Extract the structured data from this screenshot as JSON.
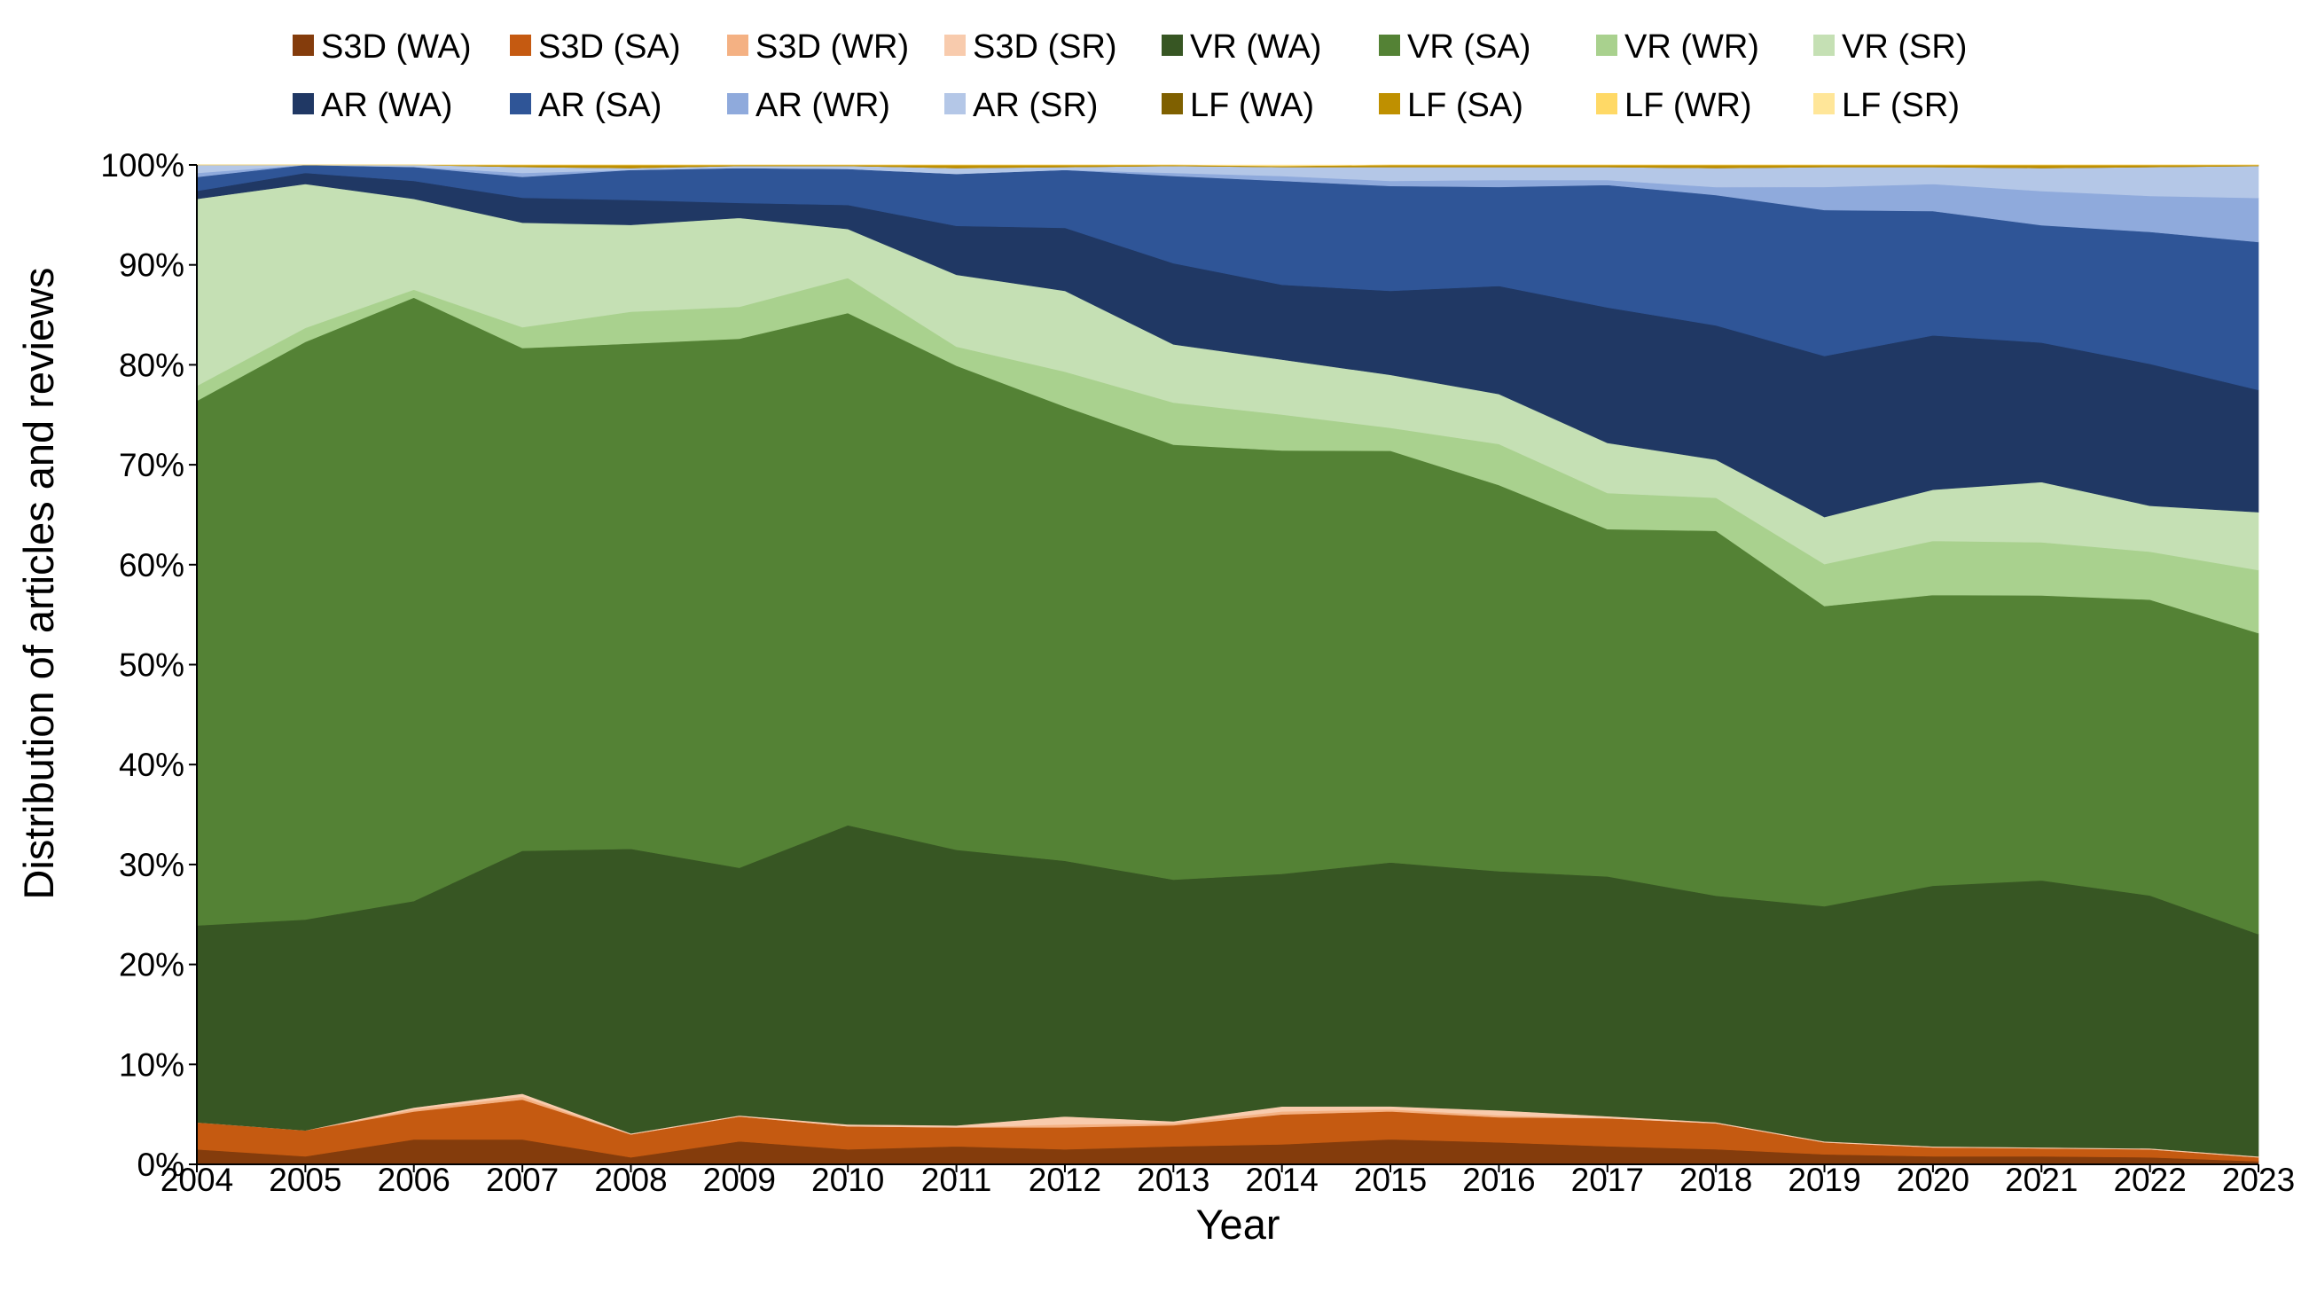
{
  "chart_data": {
    "type": "area",
    "stacked": true,
    "normalized": "percent",
    "title": "",
    "xlabel": "Year",
    "ylabel": "Distribution of articles and reviews",
    "ylim": [
      0,
      100
    ],
    "y_ticks": [
      "0%",
      "10%",
      "20%",
      "30%",
      "40%",
      "50%",
      "60%",
      "70%",
      "80%",
      "90%",
      "100%"
    ],
    "y_tick_values": [
      0,
      10,
      20,
      30,
      40,
      50,
      60,
      70,
      80,
      90,
      100
    ],
    "legend_position": "top",
    "categories": [
      "2004",
      "2005",
      "2006",
      "2007",
      "2008",
      "2009",
      "2010",
      "2011",
      "2012",
      "2013",
      "2014",
      "2015",
      "2016",
      "2017",
      "2018",
      "2019",
      "2020",
      "2021",
      "2022",
      "2023"
    ],
    "series": [
      {
        "name": "S3D (WA)",
        "color": "#843c0c",
        "values": [
          1.5,
          0.8,
          2.5,
          2.5,
          0.7,
          2.3,
          1.5,
          1.8,
          1.5,
          1.8,
          2.0,
          2.5,
          2.2,
          1.8,
          1.5,
          1.0,
          0.8,
          0.8,
          0.7,
          0.3
        ]
      },
      {
        "name": "S3D (SA)",
        "color": "#c55a11",
        "values": [
          2.7,
          2.6,
          2.8,
          4.0,
          2.3,
          2.5,
          2.3,
          1.9,
          2.2,
          2.1,
          3.0,
          2.8,
          2.5,
          2.8,
          2.6,
          1.2,
          0.9,
          0.8,
          0.8,
          0.4
        ]
      },
      {
        "name": "S3D (WR)",
        "color": "#f4b183",
        "values": [
          0,
          0,
          0.2,
          0.3,
          0,
          0,
          0,
          0,
          0.3,
          0.2,
          0.3,
          0.2,
          0.2,
          0,
          0,
          0,
          0,
          0,
          0,
          0
        ]
      },
      {
        "name": "S3D (SR)",
        "color": "#f8cbad",
        "values": [
          0,
          0,
          0.2,
          0.3,
          0.1,
          0.1,
          0.2,
          0.2,
          0.8,
          0.2,
          0.5,
          0.3,
          0.5,
          0.2,
          0.1,
          0.1,
          0.1,
          0.1,
          0.1,
          0.1
        ]
      },
      {
        "name": "VR (WA)",
        "color": "#375623",
        "values": [
          19.7,
          21.1,
          20.7,
          24.4,
          28.5,
          24.8,
          29.9,
          27.6,
          25.6,
          24.1,
          23.3,
          24.4,
          23.9,
          23.9,
          22.6,
          23.5,
          26.0,
          26.6,
          25.3,
          22.2
        ]
      },
      {
        "name": "VR (SA)",
        "color": "#548235",
        "values": [
          52.5,
          57.8,
          60.5,
          50.5,
          50.6,
          53.0,
          51.2,
          48.5,
          45.5,
          43.4,
          42.4,
          41.2,
          38.6,
          34.6,
          36.4,
          30.0,
          29.0,
          28.4,
          29.6,
          30.1
        ]
      },
      {
        "name": "VR (WR)",
        "color": "#a9d18e",
        "values": [
          1.5,
          1.4,
          0.8,
          2.1,
          3.2,
          3.2,
          3.5,
          1.9,
          3.5,
          4.2,
          3.6,
          2.3,
          4.1,
          3.6,
          3.3,
          4.2,
          5.4,
          5.3,
          4.8,
          6.3
        ]
      },
      {
        "name": "VR (SR)",
        "color": "#c5e0b4",
        "values": [
          18.7,
          14.4,
          9.1,
          10.5,
          8.7,
          8.9,
          4.9,
          7.2,
          8.1,
          5.8,
          5.5,
          5.3,
          5.0,
          5.0,
          3.8,
          4.7,
          5.1,
          6.0,
          4.6,
          5.8
        ]
      },
      {
        "name": "AR (WA)",
        "color": "#203864",
        "values": [
          0.8,
          1.1,
          1.8,
          2.5,
          2.5,
          1.5,
          2.4,
          4.9,
          6.3,
          8.1,
          7.5,
          8.4,
          10.8,
          13.5,
          13.4,
          16.1,
          15.4,
          13.9,
          14.2,
          12.2
        ]
      },
      {
        "name": "AR (SA)",
        "color": "#2f5597",
        "values": [
          1.4,
          0.8,
          1.4,
          2.1,
          3.0,
          3.5,
          3.6,
          5.2,
          5.8,
          8.7,
          10.4,
          10.5,
          9.9,
          12.2,
          13.0,
          14.6,
          12.4,
          11.7,
          13.2,
          14.8
        ]
      },
      {
        "name": "AR (WR)",
        "color": "#8faadc",
        "values": [
          0.4,
          0,
          0,
          0.4,
          0,
          0,
          0,
          0,
          0,
          0.3,
          0.5,
          0.5,
          0.7,
          0.5,
          0.8,
          2.3,
          2.7,
          3.4,
          3.6,
          4.4
        ]
      },
      {
        "name": "AR (SR)",
        "color": "#b4c7e7",
        "values": [
          0.8,
          0,
          0.2,
          0.6,
          0.2,
          0.2,
          0.3,
          0.6,
          0.3,
          0.7,
          0.9,
          1.4,
          1.3,
          1.3,
          1.9,
          2.0,
          1.7,
          2.3,
          2.9,
          3.2
        ]
      },
      {
        "name": "LF (WA)",
        "color": "#7f6000",
        "values": [
          0,
          0,
          0,
          0,
          0,
          0,
          0,
          0,
          0,
          0,
          0,
          0,
          0,
          0,
          0,
          0,
          0,
          0,
          0,
          0
        ]
      },
      {
        "name": "LF (SA)",
        "color": "#bf9000",
        "values": [
          0,
          0,
          0,
          0.2,
          0.3,
          0.1,
          0.1,
          0.3,
          0.2,
          0.1,
          0.1,
          0.2,
          0.2,
          0.2,
          0.3,
          0.2,
          0.2,
          0.3,
          0.2,
          0.1
        ]
      },
      {
        "name": "LF (WR)",
        "color": "#ffd966",
        "values": [
          0,
          0,
          0,
          0,
          0,
          0,
          0,
          0,
          0,
          0,
          0,
          0,
          0,
          0,
          0,
          0,
          0,
          0,
          0,
          0
        ]
      },
      {
        "name": "LF (SR)",
        "color": "#ffe699",
        "values": [
          0,
          0,
          0,
          0,
          0,
          0,
          0,
          0,
          0,
          0,
          0.1,
          0,
          0,
          0,
          0,
          0,
          0,
          0,
          0,
          0
        ]
      }
    ]
  }
}
